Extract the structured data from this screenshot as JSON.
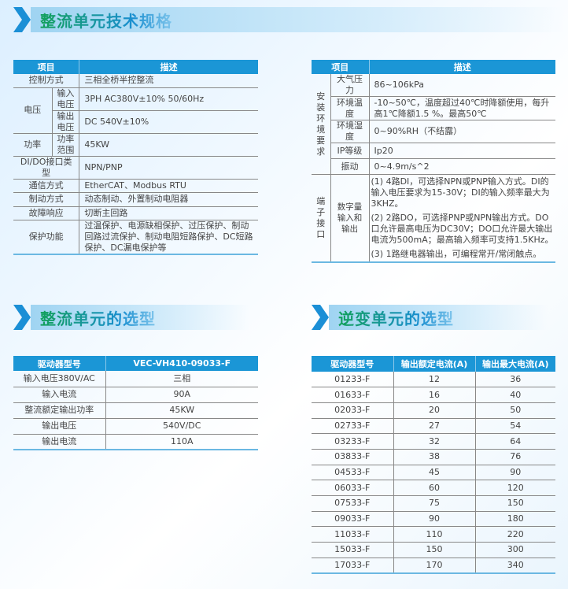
{
  "sections": {
    "tech": "整流单元技术规格",
    "rect": "整流单元的选型",
    "inv": "逆变单元的选型"
  },
  "spec1": {
    "headers": [
      "项目",
      "描述"
    ],
    "rows": [
      {
        "item": "控制方式",
        "desc": "三相全桥半控整流"
      },
      {
        "group": "电压",
        "item": "输入电压",
        "desc": "3PH AC380V±10% 50/60Hz"
      },
      {
        "item": "输出电压",
        "desc": "DC 540V±10%"
      },
      {
        "group": "功率",
        "item": "功率范围",
        "desc": "45KW"
      },
      {
        "item": "DI/DO接口类型",
        "desc": "NPN/PNP"
      },
      {
        "item": "通信方式",
        "desc": "EtherCAT、Modbus RTU"
      },
      {
        "item": "制动方式",
        "desc": "动态制动、外置制动电阻器"
      },
      {
        "item": "故障响应",
        "desc": "切断主回路"
      },
      {
        "item": "保护功能",
        "desc": "过温保护、电源缺相保护、过压保护、制动回路过流保护、制动电阻短路保护、DC短路保护、DC漏电保护等"
      }
    ]
  },
  "spec2": {
    "headers": [
      "项目",
      "描述"
    ],
    "group1": "安装环境要求",
    "group2": "端子接口",
    "rows": [
      {
        "item": "大气压力",
        "desc": "86~106kPa"
      },
      {
        "item": "环境温度",
        "desc": "-10~50℃，温度超过40℃时降额使用，每升高1℃降额1.5 %。最高50℃"
      },
      {
        "item": "环境湿度",
        "desc": "0~90%RH（不结露）"
      },
      {
        "item": "IP等级",
        "desc": "Ip20"
      },
      {
        "item": "振动",
        "desc": "0~4.9m/s^2"
      },
      {
        "item": "数字量输入和输出",
        "desc": [
          "(1) 4路DI，可选择NPN或PNP输入方式。DI的输入电压要求为15-30V；DI的输入频率最大为3KHZ。",
          "(2) 2路DO，可选择PNP或NPN输出方式。DO口允许最高电压为DC30V；DO口允许最大输出电流为500mA；最高输入频率可支持1.5KHz。",
          "(3) 1路继电器输出，可编程常开/常闭触点。"
        ]
      }
    ]
  },
  "rectifier": {
    "headers": [
      "驱动器型号",
      "VEC-VH410-09033-F"
    ],
    "rows": [
      [
        "输入电压380V/AC",
        "三相"
      ],
      [
        "输入电流",
        "90A"
      ],
      [
        "整流额定输出功率",
        "45KW"
      ],
      [
        "输出电压",
        "540V/DC"
      ],
      [
        "输出电流",
        "110A"
      ]
    ]
  },
  "inverter": {
    "headers": [
      "驱动器型号",
      "输出额定电流(A)",
      "输出最大电流(A)"
    ],
    "rows": [
      [
        "01233-F",
        "12",
        "36"
      ],
      [
        "01633-F",
        "16",
        "40"
      ],
      [
        "02033-F",
        "20",
        "50"
      ],
      [
        "02733-F",
        "27",
        "54"
      ],
      [
        "03233-F",
        "32",
        "64"
      ],
      [
        "03833-F",
        "38",
        "76"
      ],
      [
        "04533-F",
        "45",
        "90"
      ],
      [
        "06033-F",
        "60",
        "120"
      ],
      [
        "07533-F",
        "75",
        "150"
      ],
      [
        "09033-F",
        "90",
        "180"
      ],
      [
        "11033-F",
        "110",
        "220"
      ],
      [
        "15033-F",
        "150",
        "300"
      ],
      [
        "17033-F",
        "170",
        "340"
      ]
    ]
  }
}
